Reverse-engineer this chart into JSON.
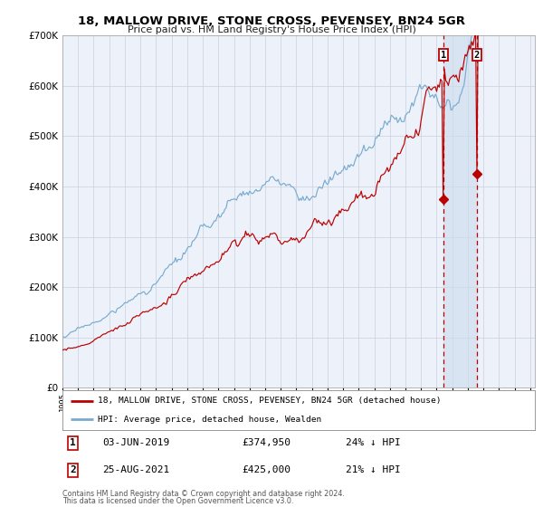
{
  "title": "18, MALLOW DRIVE, STONE CROSS, PEVENSEY, BN24 5GR",
  "subtitle": "Price paid vs. HM Land Registry's House Price Index (HPI)",
  "red_label": "18, MALLOW DRIVE, STONE CROSS, PEVENSEY, BN24 5GR (detached house)",
  "blue_label": "HPI: Average price, detached house, Wealden",
  "transaction1_date": "03-JUN-2019",
  "transaction1_price": 374950,
  "transaction1_hpi": "24% ↓ HPI",
  "transaction2_date": "25-AUG-2021",
  "transaction2_price": 425000,
  "transaction2_hpi": "21% ↓ HPI",
  "footer": "Contains HM Land Registry data © Crown copyright and database right 2024.\nThis data is licensed under the Open Government Licence v3.0.",
  "background_color": "#ffffff",
  "plot_bg_color": "#edf2fa",
  "grid_color": "#c8d0de",
  "red_color": "#bb0000",
  "blue_color": "#7aabcf",
  "highlight_bg": "#ccdcee",
  "ylim_max": 700000,
  "yticks": [
    0,
    100000,
    200000,
    300000,
    400000,
    500000,
    600000,
    700000
  ],
  "start_year": 1995,
  "end_year": 2025
}
